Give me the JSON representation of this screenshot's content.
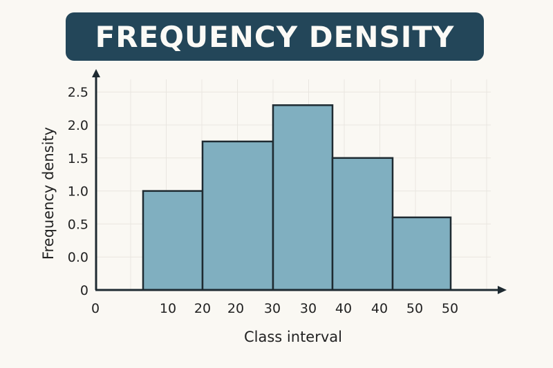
{
  "chart_data": {
    "type": "bar",
    "title": "FREQUENCY DENSITY",
    "xlabel": "Class interval",
    "ylabel": "Frequency density",
    "y_tick_labels": [
      "0",
      "0.0",
      "0.5",
      "1.0",
      "1.5",
      "2.0",
      "2.5"
    ],
    "x_tick_labels": [
      "0",
      "10",
      "20",
      "20",
      "30",
      "30",
      "40",
      "40",
      "50",
      "50"
    ],
    "values": [
      1.0,
      1.75,
      2.3,
      1.5,
      0.6
    ],
    "grid": true,
    "colors": {
      "bar": "#80afc0",
      "bar_edge": "#1e2a31",
      "title_bg": "#234659",
      "background": "#faf8f3",
      "grid": "#e9e6e0"
    }
  }
}
